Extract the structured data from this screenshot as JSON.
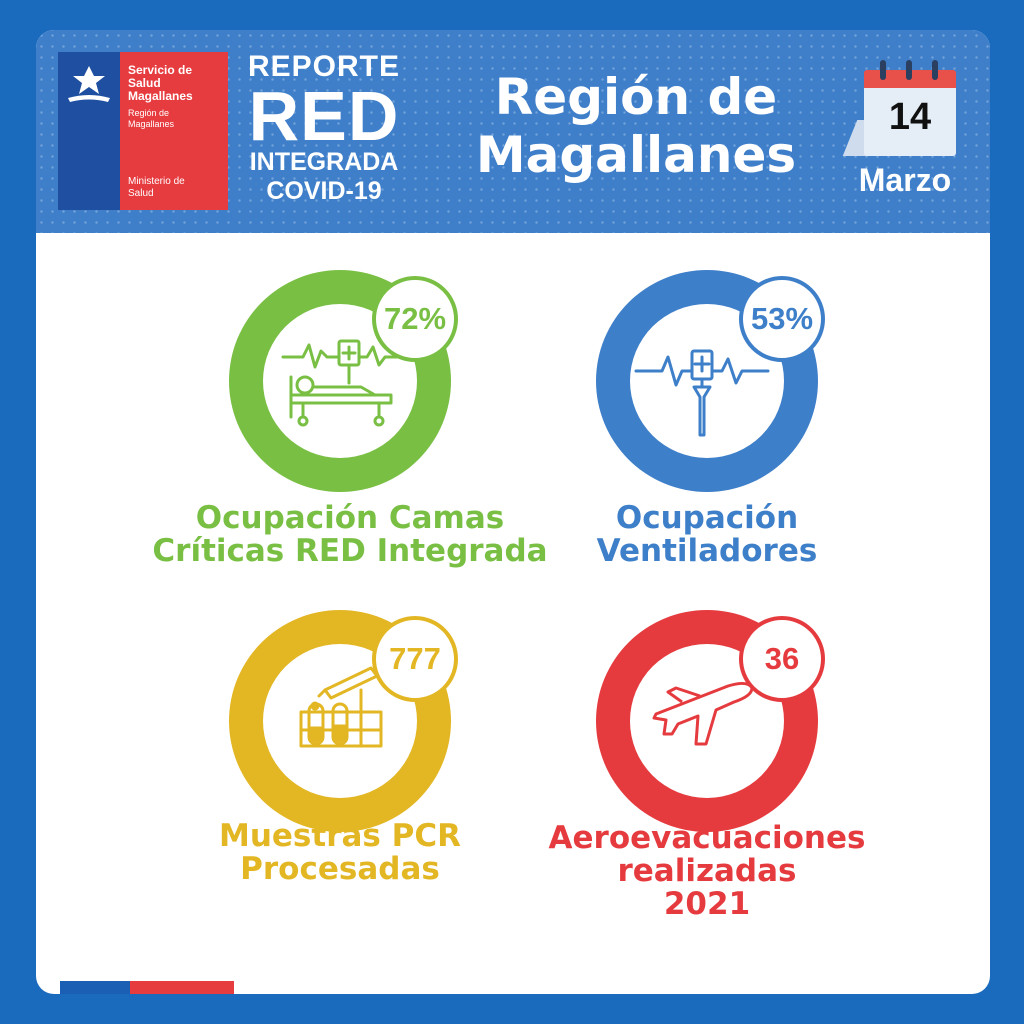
{
  "brand": {
    "org_line1": "Servicio de",
    "org_line2": "Salud",
    "org_line3": "Magallanes",
    "region_line1": "Región de",
    "region_line2": "Magallanes",
    "ministry_line1": "Ministerio de",
    "ministry_line2": "Salud"
  },
  "report": {
    "line1": "REPORTE",
    "line2": "RED",
    "line3": "INTEGRADA",
    "line4": "COVID-19"
  },
  "title": {
    "line1": "Región de",
    "line2": "Magallanes"
  },
  "date": {
    "day": "14",
    "month": "Marzo"
  },
  "stats": [
    {
      "value": "72%",
      "icon": "hospital-bed-icon",
      "color": "#79bf44",
      "label_line1": "Ocupación Camas",
      "label_line2": "Críticas RED Integrada"
    },
    {
      "value": "53%",
      "icon": "ventilator-icon",
      "color": "#3e7fc9",
      "label_line1": "Ocupación",
      "label_line2": "Ventiladores"
    },
    {
      "value": "777",
      "icon": "test-tubes-icon",
      "color": "#e3b624",
      "label_line1": "Muestras PCR",
      "label_line2": "Procesadas"
    },
    {
      "value": "36",
      "icon": "airplane-icon",
      "color": "#e53b3f",
      "label_line1": "Aeroevacuaciones",
      "label_line2": "realizadas",
      "label_line3": "2021"
    }
  ]
}
